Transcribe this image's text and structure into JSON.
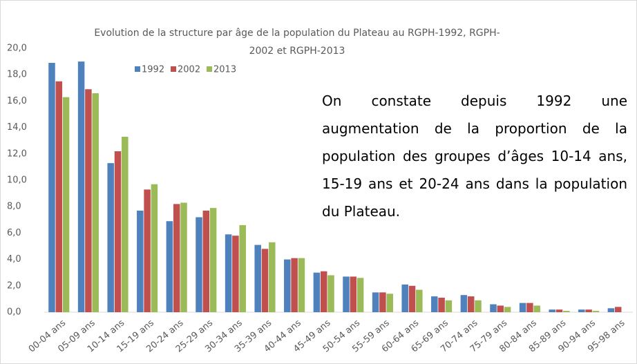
{
  "chart_data": {
    "type": "bar",
    "title": [
      "Evolution de la structure par âge de la population du Plateau au RGPH-1992, RGPH-",
      "2002 et RGPH-2013"
    ],
    "annotation": "On constate depuis 1992 une augmentation de la proportion de la population des groupes d’âges 10-14 ans, 15-19 ans et 20-24 ans dans la population du Plateau.",
    "categories": [
      "00-04 ans",
      "05-09 ans",
      "10-14 ans",
      "15-19 ans",
      "20-24 ans",
      "25-29 ans",
      "30-34 ans",
      "35-39 ans",
      "40-44 ans",
      "45-49 ans",
      "50-54 ans",
      "55-59 ans",
      "60-64 ans",
      "65-69 ans",
      "70-74 ans",
      "75-79 ans",
      "80-84 ans",
      "85-89 ans",
      "90-94 ans",
      "95-98 ans"
    ],
    "series": [
      {
        "name": "1992",
        "color": "#4f81bd",
        "values": [
          18.9,
          19.0,
          11.3,
          7.7,
          6.9,
          7.2,
          5.9,
          5.1,
          4.0,
          3.0,
          2.7,
          1.5,
          2.1,
          1.2,
          1.3,
          0.6,
          0.7,
          0.2,
          0.2,
          0.3
        ]
      },
      {
        "name": "2002",
        "color": "#c0504d",
        "values": [
          17.5,
          16.9,
          12.2,
          9.3,
          8.2,
          7.7,
          5.8,
          4.8,
          4.1,
          3.1,
          2.7,
          1.5,
          2.0,
          1.1,
          1.2,
          0.5,
          0.7,
          0.2,
          0.2,
          0.4
        ]
      },
      {
        "name": "2013",
        "color": "#9bbb59",
        "values": [
          16.3,
          16.6,
          13.3,
          9.7,
          8.3,
          7.9,
          6.6,
          5.3,
          4.1,
          2.8,
          2.6,
          1.4,
          1.7,
          0.9,
          0.9,
          0.4,
          0.5,
          0.1,
          0.1,
          null
        ]
      }
    ],
    "ylim": [
      0,
      20
    ],
    "yticks": [
      {
        "value": 0,
        "label": "0,0"
      },
      {
        "value": 2,
        "label": "2,0"
      },
      {
        "value": 4,
        "label": "4,0"
      },
      {
        "value": 6,
        "label": "6,0"
      },
      {
        "value": 8,
        "label": "8,0"
      },
      {
        "value": 10,
        "label": "10,0"
      },
      {
        "value": 12,
        "label": "12,0"
      },
      {
        "value": 14,
        "label": "14,0"
      },
      {
        "value": 16,
        "label": "16,0"
      },
      {
        "value": 18,
        "label": "18,0"
      },
      {
        "value": 20,
        "label": "20,0"
      }
    ],
    "grid": false,
    "legend": "top-left"
  }
}
